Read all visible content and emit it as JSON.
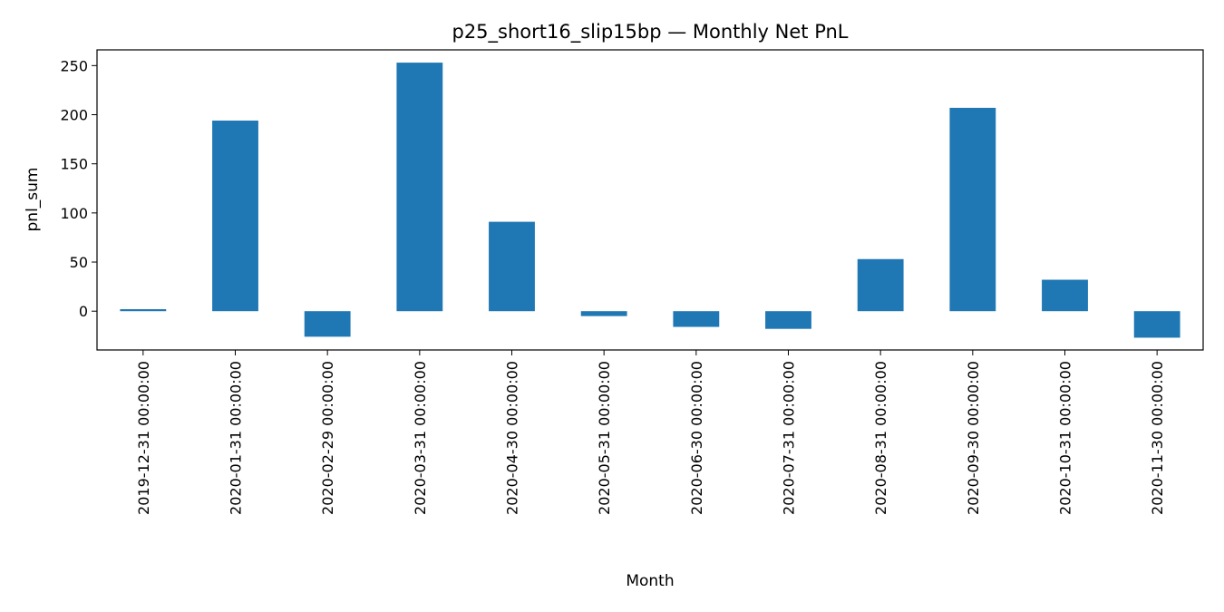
{
  "chart_data": {
    "type": "bar",
    "title": "p25_short16_slip15bp — Monthly Net PnL",
    "xlabel": "Month",
    "ylabel": "pnl_sum",
    "categories": [
      "2019-12-31 00:00:00",
      "2020-01-31 00:00:00",
      "2020-02-29 00:00:00",
      "2020-03-31 00:00:00",
      "2020-04-30 00:00:00",
      "2020-05-31 00:00:00",
      "2020-06-30 00:00:00",
      "2020-07-31 00:00:00",
      "2020-08-31 00:00:00",
      "2020-09-30 00:00:00",
      "2020-10-31 00:00:00",
      "2020-11-30 00:00:00"
    ],
    "values": [
      2,
      194,
      -26,
      253,
      91,
      -5,
      -16,
      -18,
      53,
      207,
      32,
      -27
    ],
    "ylim": [
      -39.5,
      266
    ],
    "yticks": [
      0,
      50,
      100,
      150,
      200,
      250
    ],
    "bar_color": "#1f77b4",
    "grid": false,
    "legend": "none"
  }
}
